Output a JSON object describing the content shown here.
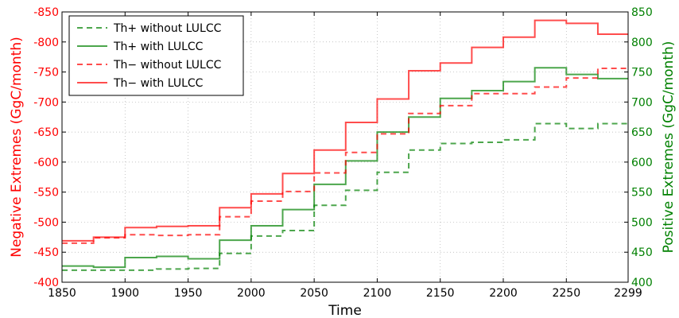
{
  "chart_data": {
    "type": "line",
    "xlabel": "Time",
    "ylabel_left": "Negative Extremes (GgC/month)",
    "ylabel_right": "Positive Extremes (GgC/month)",
    "xlim": [
      1850,
      2299
    ],
    "ylim_left": [
      -400,
      -850
    ],
    "ylim_right": [
      400,
      850
    ],
    "x_ticks": [
      "1850",
      "1900",
      "1950",
      "2000",
      "2050",
      "2100",
      "2150",
      "2200",
      "2250",
      "2299"
    ],
    "y_left_ticks": [
      "-850",
      "-800",
      "-750",
      "-700",
      "-650",
      "-600",
      "-550",
      "-500",
      "-450",
      "-400"
    ],
    "y_right_ticks": [
      "850",
      "800",
      "750",
      "700",
      "650",
      "600",
      "550",
      "500",
      "450",
      "400"
    ],
    "grid": true,
    "legend_position": "top-left",
    "colors": {
      "red": "#ff0000",
      "green": "#008000"
    },
    "step_edges": [
      1850,
      1875,
      1900,
      1925,
      1950,
      1975,
      2000,
      2025,
      2050,
      2075,
      2100,
      2125,
      2150,
      2175,
      2200,
      2225,
      2250,
      2275,
      2299
    ],
    "series": [
      {
        "name": "Th+ without LULCC",
        "axis": "right",
        "color": "#008000",
        "style": "dashed",
        "values": [
          420,
          420,
          420,
          422,
          423,
          448,
          477,
          486,
          528,
          553,
          583,
          620,
          631,
          633,
          637,
          664,
          656,
          664
        ]
      },
      {
        "name": "Th+ with LULCC",
        "axis": "right",
        "color": "#008000",
        "style": "solid",
        "values": [
          427,
          425,
          441,
          443,
          439,
          470,
          494,
          521,
          563,
          602,
          650,
          675,
          706,
          719,
          734,
          757,
          746,
          739
        ]
      },
      {
        "name": "Th− without LULCC",
        "axis": "left",
        "color": "#ff0000",
        "style": "dashed",
        "values": [
          -465,
          -474,
          -479,
          -478,
          -479,
          -509,
          -535,
          -551,
          -582,
          -616,
          -647,
          -681,
          -694,
          -714,
          -714,
          -725,
          -740,
          -756
        ]
      },
      {
        "name": "Th− with LULCC",
        "axis": "left",
        "color": "#ff0000",
        "style": "solid",
        "values": [
          -469,
          -475,
          -491,
          -493,
          -494,
          -524,
          -547,
          -581,
          -620,
          -666,
          -705,
          -752,
          -765,
          -791,
          -808,
          -836,
          -831,
          -813
        ]
      }
    ]
  }
}
